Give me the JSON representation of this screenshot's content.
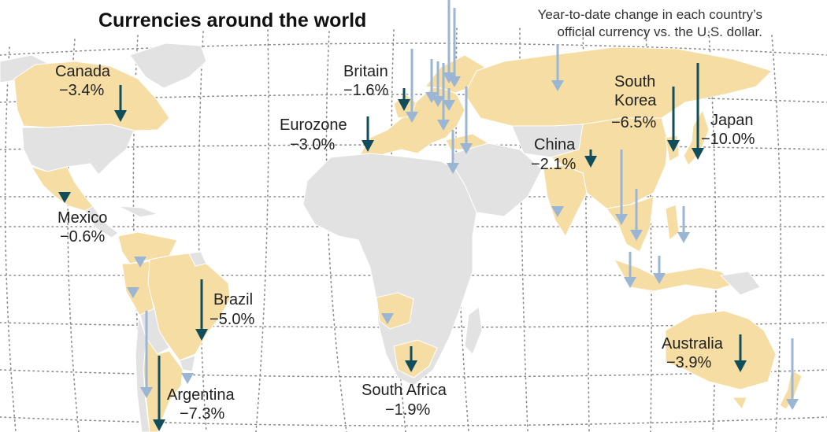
{
  "title": "Currencies around the world",
  "subtitle_line1": "Year-to-date change in each country’s",
  "subtitle_line2": "official currency vs. the U.S. dollar.",
  "colors": {
    "land": "#e2e2e2",
    "currency_land": "#f5dda3",
    "labeled_arrow": "#114d5b",
    "unlabeled_arrow": "#9ab6d4",
    "grid": "#8a8a8a"
  },
  "labeled": [
    {
      "id": "canada",
      "name": "Canada",
      "value": "−3.4%"
    },
    {
      "id": "britain",
      "name": "Britain",
      "value": "−1.6%"
    },
    {
      "id": "eurozone",
      "name": "Eurozone",
      "value": "−3.0%"
    },
    {
      "id": "south-korea",
      "name_line1": "South",
      "name_line2": "Korea",
      "value": "−6.5%"
    },
    {
      "id": "japan",
      "name": "Japan",
      "value": "−10.0%"
    },
    {
      "id": "china",
      "name": "China",
      "value": "−2.1%"
    },
    {
      "id": "mexico",
      "name": "Mexico",
      "value": "−0.6%"
    },
    {
      "id": "brazil",
      "name": "Brazil",
      "value": "−5.0%"
    },
    {
      "id": "argentina",
      "name": "Argentina",
      "value": "−7.3%"
    },
    {
      "id": "south-africa",
      "name": "South Africa",
      "value": "−1.9%"
    },
    {
      "id": "australia",
      "name": "Australia",
      "value": "−3.9%"
    }
  ]
}
